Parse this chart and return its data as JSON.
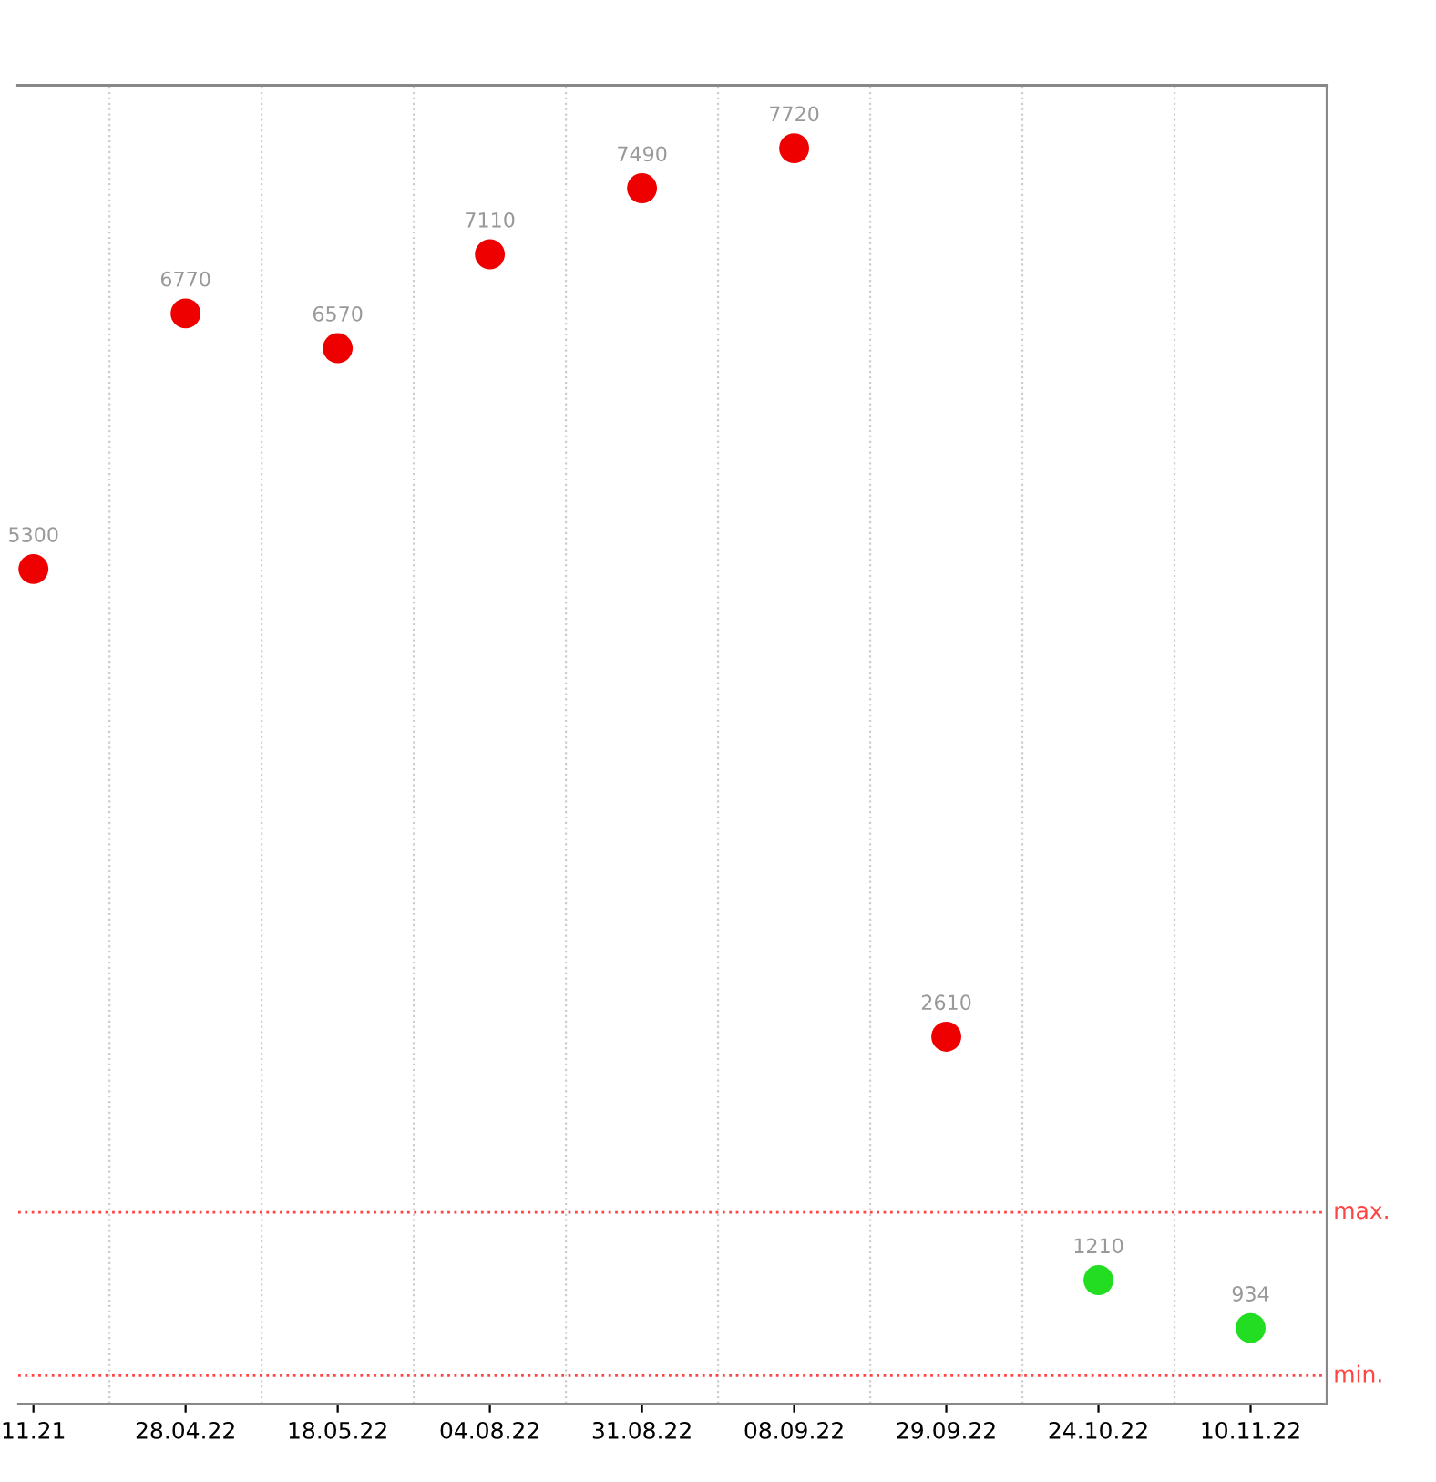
{
  "chart_data": {
    "type": "scatter",
    "categories": [
      "11.21",
      "28.04.22",
      "18.05.22",
      "04.08.22",
      "31.08.22",
      "08.09.22",
      "29.09.22",
      "24.10.22",
      "10.11.22"
    ],
    "values": [
      5300,
      6770,
      6570,
      7110,
      7490,
      7720,
      2610,
      1210,
      934
    ],
    "colors": [
      "#ee0000",
      "#ee0000",
      "#ee0000",
      "#ee0000",
      "#ee0000",
      "#ee0000",
      "#ee0000",
      "#22dd22",
      "#22dd22"
    ],
    "data_labels": true,
    "ylim": [
      500,
      8080
    ],
    "tick_labels": "x",
    "grid": "x",
    "marker": "circle",
    "ref_lines": [
      {
        "axis": "y",
        "value": 1600,
        "label": "max.",
        "color": "#ff4444",
        "line_style": "dotted"
      },
      {
        "axis": "y",
        "value": 660,
        "label": "min.",
        "color": "#ff4444",
        "line_style": "dotted"
      }
    ]
  }
}
